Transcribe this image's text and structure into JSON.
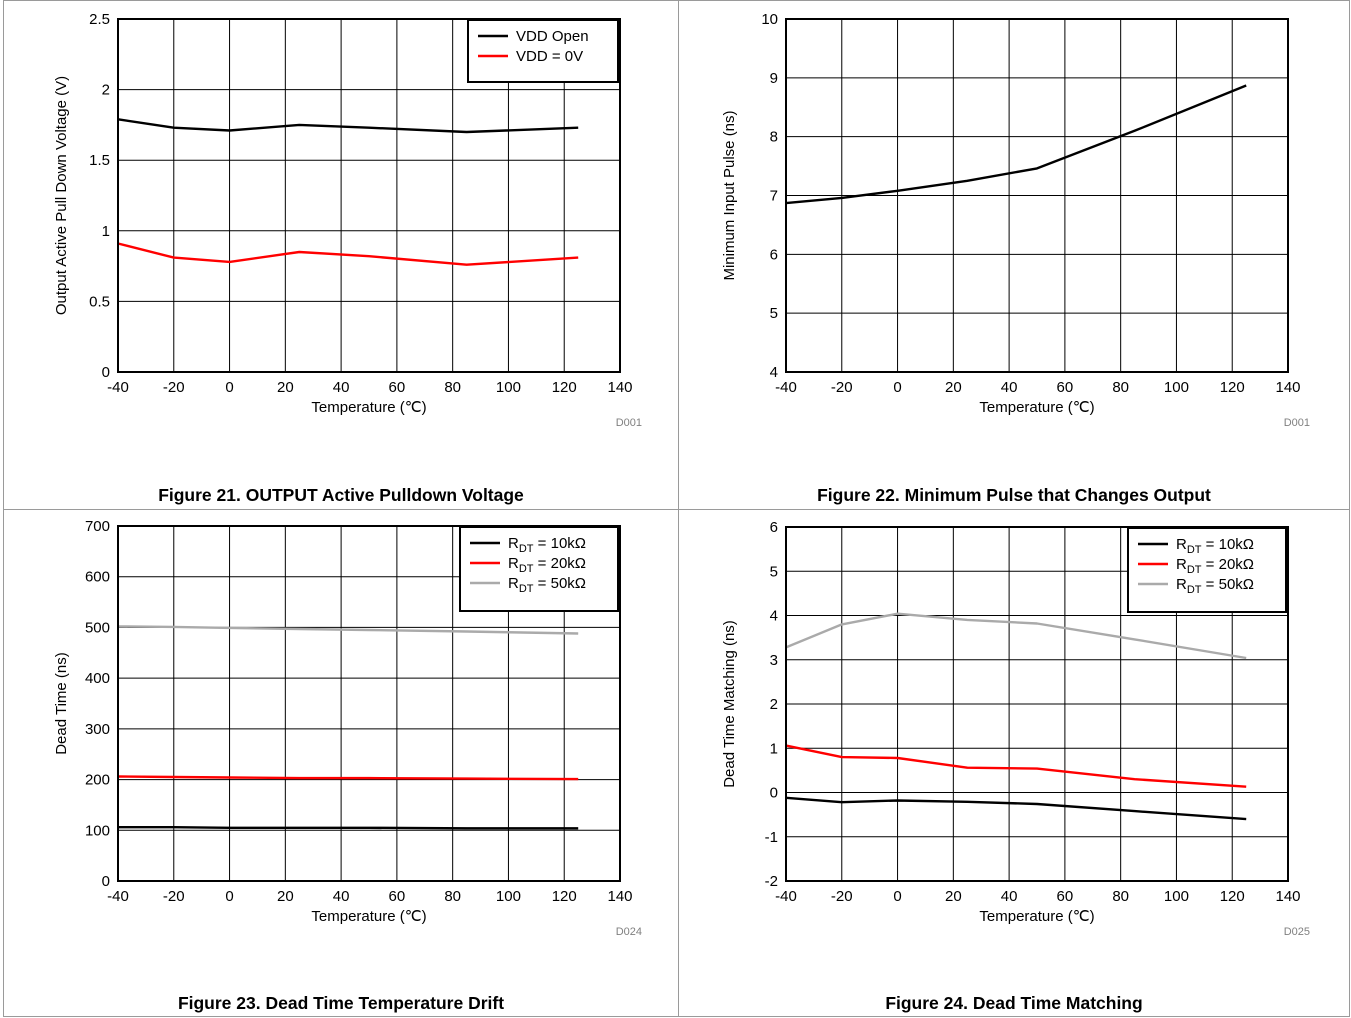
{
  "chart_data": [
    {
      "type": "line",
      "caption": "Figure 21. OUTPUT Active Pulldown Voltage",
      "xlabel": "Temperature (℃)",
      "ylabel": "Output Active Pull Down Voltage (V)",
      "code": "D001",
      "xlim": [
        -40,
        140
      ],
      "ylim": [
        0,
        2.5
      ],
      "xticks": [
        -40,
        -20,
        0,
        20,
        40,
        60,
        80,
        100,
        120,
        140
      ],
      "yticks": [
        0,
        0.5,
        1,
        1.5,
        2,
        2.5
      ],
      "ytick_labels": [
        "0",
        "0.5",
        "1",
        "1.5",
        "2",
        "2.5"
      ],
      "grid": true,
      "legend_position": "top-right",
      "series": [
        {
          "name": "VDD Open",
          "name_main": "VDD Open",
          "name_sub": "",
          "name_tail": "",
          "color": "#000000",
          "x": [
            -40,
            -20,
            0,
            25,
            50,
            85,
            125
          ],
          "values": [
            1.79,
            1.73,
            1.71,
            1.75,
            1.73,
            1.7,
            1.73
          ]
        },
        {
          "name": "VDD = 0V",
          "name_main": "VDD = 0V",
          "name_sub": "",
          "name_tail": "",
          "color": "#ff0000",
          "x": [
            -40,
            -20,
            0,
            25,
            50,
            85,
            125
          ],
          "values": [
            0.91,
            0.81,
            0.78,
            0.85,
            0.82,
            0.76,
            0.81
          ]
        }
      ]
    },
    {
      "type": "line",
      "caption": "Figure 22. Minimum Pulse that Changes Output",
      "xlabel": "Temperature (℃)",
      "ylabel": "Minimum Input Pulse (ns)",
      "code": "D001",
      "xlim": [
        -40,
        140
      ],
      "ylim": [
        4,
        10
      ],
      "xticks": [
        -40,
        -20,
        0,
        20,
        40,
        60,
        80,
        100,
        120,
        140
      ],
      "yticks": [
        4,
        5,
        6,
        7,
        8,
        9,
        10
      ],
      "ytick_labels": [
        "4",
        "5",
        "6",
        "7",
        "8",
        "9",
        "10"
      ],
      "grid": true,
      "legend_position": "none",
      "series": [
        {
          "name": "",
          "name_main": "",
          "name_sub": "",
          "name_tail": "",
          "color": "#000000",
          "x": [
            -40,
            -20,
            0,
            25,
            50,
            85,
            125
          ],
          "values": [
            6.87,
            6.96,
            7.08,
            7.25,
            7.46,
            8.1,
            8.87
          ]
        }
      ]
    },
    {
      "type": "line",
      "caption": "Figure 23. Dead Time Temperature Drift",
      "xlabel": "Temperature (℃)",
      "ylabel": "Dead Time (ns)",
      "code": "D024",
      "xlim": [
        -40,
        140
      ],
      "ylim": [
        0,
        700
      ],
      "xticks": [
        -40,
        -20,
        0,
        20,
        40,
        60,
        80,
        100,
        120,
        140
      ],
      "yticks": [
        0,
        100,
        200,
        300,
        400,
        500,
        600,
        700
      ],
      "ytick_labels": [
        "0",
        "100",
        "200",
        "300",
        "400",
        "500",
        "600",
        "700"
      ],
      "grid": true,
      "legend_position": "top-right",
      "series": [
        {
          "name": "RDT = 10kΩ",
          "name_main": "R",
          "name_sub": "DT",
          "name_tail": " = 10kΩ",
          "color": "#000000",
          "x": [
            -40,
            -20,
            0,
            25,
            50,
            85,
            125
          ],
          "values": [
            106,
            106,
            105,
            105,
            105,
            104,
            104
          ]
        },
        {
          "name": "RDT = 20kΩ",
          "name_main": "R",
          "name_sub": "DT",
          "name_tail": " = 20kΩ",
          "color": "#ff0000",
          "x": [
            -40,
            -20,
            0,
            25,
            50,
            85,
            125
          ],
          "values": [
            206,
            205,
            204,
            203,
            203,
            202,
            201
          ]
        },
        {
          "name": "RDT = 50kΩ",
          "name_main": "R",
          "name_sub": "DT",
          "name_tail": " = 50kΩ",
          "color": "#aaaaaa",
          "x": [
            -40,
            -20,
            0,
            25,
            50,
            85,
            125
          ],
          "values": [
            502,
            501,
            499,
            497,
            495,
            492,
            488
          ]
        }
      ]
    },
    {
      "type": "line",
      "caption": "Figure 24. Dead Time Matching",
      "xlabel": "Temperature (℃)",
      "ylabel": "Dead Time Matching (ns)",
      "code": "D025",
      "xlim": [
        -40,
        140
      ],
      "ylim": [
        -2,
        6
      ],
      "xticks": [
        -40,
        -20,
        0,
        20,
        40,
        60,
        80,
        100,
        120,
        140
      ],
      "yticks": [
        -2,
        -1,
        0,
        1,
        2,
        3,
        4,
        5,
        6
      ],
      "ytick_labels": [
        "-2",
        "-1",
        "0",
        "1",
        "2",
        "3",
        "4",
        "5",
        "6"
      ],
      "grid": true,
      "legend_position": "top-right",
      "series": [
        {
          "name": "RDT = 10kΩ",
          "name_main": "R",
          "name_sub": "DT",
          "name_tail": " = 10kΩ",
          "color": "#000000",
          "x": [
            -40,
            -20,
            0,
            25,
            50,
            85,
            125
          ],
          "values": [
            -0.12,
            -0.22,
            -0.18,
            -0.21,
            -0.26,
            -0.42,
            -0.6
          ]
        },
        {
          "name": "RDT = 20kΩ",
          "name_main": "R",
          "name_sub": "DT",
          "name_tail": " = 20kΩ",
          "color": "#ff0000",
          "x": [
            -40,
            -20,
            0,
            25,
            50,
            85,
            125
          ],
          "values": [
            1.06,
            0.8,
            0.78,
            0.56,
            0.54,
            0.3,
            0.13
          ]
        },
        {
          "name": "RDT = 50kΩ",
          "name_main": "R",
          "name_sub": "DT",
          "name_tail": " = 50kΩ",
          "color": "#aaaaaa",
          "x": [
            -40,
            -20,
            0,
            25,
            50,
            85,
            125
          ],
          "values": [
            3.28,
            3.8,
            4.04,
            3.9,
            3.82,
            3.46,
            3.04
          ]
        }
      ]
    }
  ]
}
